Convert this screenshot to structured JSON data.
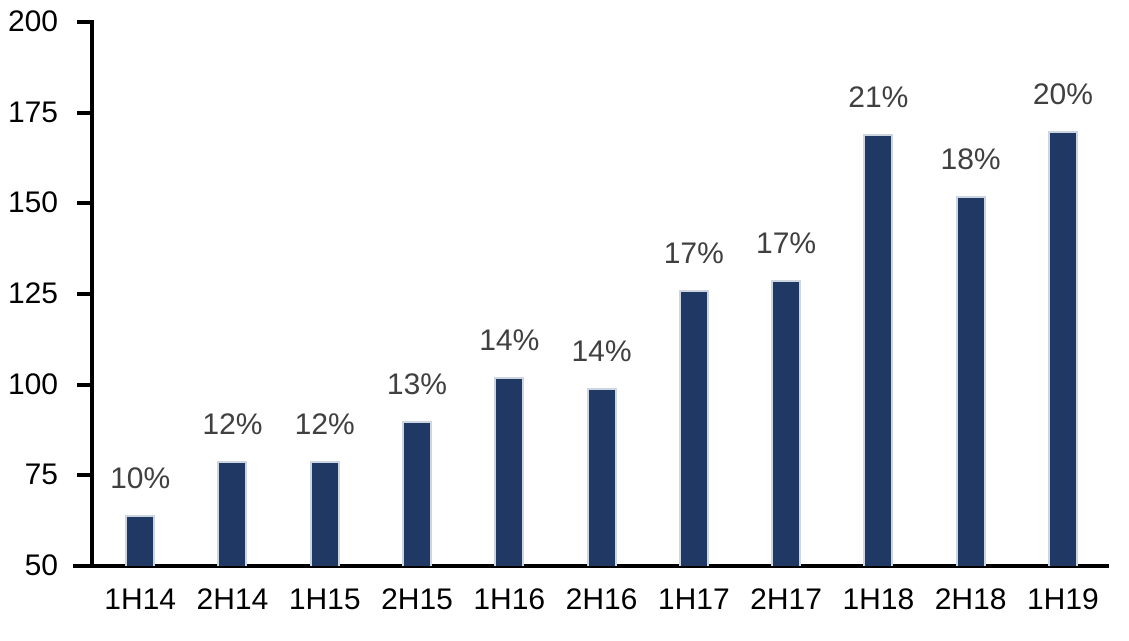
{
  "chart_data": {
    "type": "bar",
    "title": "",
    "xlabel": "",
    "ylabel": "",
    "categories": [
      "1H14",
      "2H14",
      "1H15",
      "2H15",
      "1H16",
      "2H16",
      "1H17",
      "2H17",
      "1H18",
      "2H18",
      "1H19"
    ],
    "values": [
      64,
      79,
      79,
      90,
      102,
      99,
      126,
      129,
      169,
      152,
      170
    ],
    "bar_labels": [
      "10%",
      "12%",
      "12%",
      "13%",
      "14%",
      "14%",
      "17%",
      "17%",
      "21%",
      "18%",
      "20%"
    ],
    "ylim": [
      50,
      200
    ],
    "yticks": [
      50,
      75,
      100,
      125,
      150,
      175,
      200
    ],
    "ytick_labels": [
      "50",
      "75",
      "100",
      "125",
      "150",
      "175",
      "200"
    ],
    "grid": false,
    "legend_position": "none",
    "colors": {
      "bar_fill": "#1f3864",
      "bar_edge": "#ccd5e0",
      "data_label": "#404040",
      "axis_text": "#000000",
      "axis_line": "#000000",
      "background": "#ffffff"
    }
  }
}
